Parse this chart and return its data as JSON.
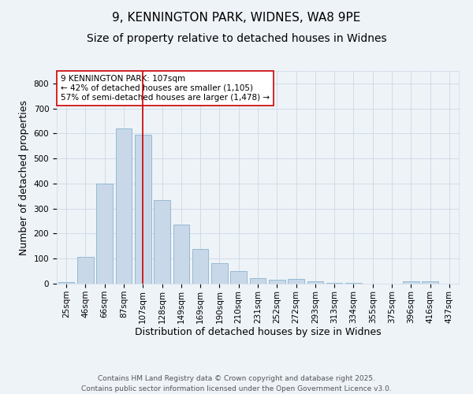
{
  "title_line1": "9, KENNINGTON PARK, WIDNES, WA8 9PE",
  "title_line2": "Size of property relative to detached houses in Widnes",
  "xlabel": "Distribution of detached houses by size in Widnes",
  "ylabel": "Number of detached properties",
  "categories": [
    "25sqm",
    "46sqm",
    "66sqm",
    "87sqm",
    "107sqm",
    "128sqm",
    "149sqm",
    "169sqm",
    "190sqm",
    "210sqm",
    "231sqm",
    "252sqm",
    "272sqm",
    "293sqm",
    "313sqm",
    "334sqm",
    "355sqm",
    "375sqm",
    "396sqm",
    "416sqm",
    "437sqm"
  ],
  "values": [
    5,
    108,
    400,
    620,
    595,
    335,
    237,
    138,
    82,
    50,
    22,
    15,
    18,
    8,
    4,
    2,
    0,
    0,
    8,
    8,
    0
  ],
  "bar_color": "#c8d8e8",
  "bar_edge_color": "#7aaac8",
  "property_line_index": 4,
  "property_line_color": "#cc0000",
  "annotation_text": "9 KENNINGTON PARK: 107sqm\n← 42% of detached houses are smaller (1,105)\n57% of semi-detached houses are larger (1,478) →",
  "annotation_box_color": "#ffffff",
  "annotation_box_edge": "#cc0000",
  "ylim": [
    0,
    850
  ],
  "yticks": [
    0,
    100,
    200,
    300,
    400,
    500,
    600,
    700,
    800
  ],
  "grid_color": "#ccd8e4",
  "background_color": "#eef3f8",
  "footer_line1": "Contains HM Land Registry data © Crown copyright and database right 2025.",
  "footer_line2": "Contains public sector information licensed under the Open Government Licence v3.0.",
  "title_fontsize": 11,
  "subtitle_fontsize": 10,
  "axis_label_fontsize": 9,
  "tick_fontsize": 7.5,
  "annotation_fontsize": 7.5,
  "footer_fontsize": 6.5
}
